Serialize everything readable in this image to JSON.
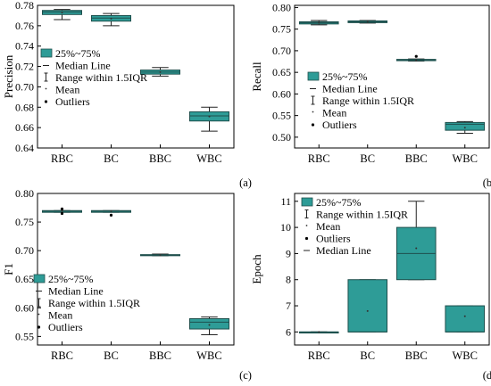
{
  "colors": {
    "box_fill": "#2e9c97",
    "box_stroke": "#1e4f4c",
    "axis": "#000000",
    "median": "#1e4f4c"
  },
  "chart_data": [
    {
      "panel_label": "(a)",
      "type": "box",
      "ylabel": "Precision",
      "ylim": [
        0.64,
        0.78
      ],
      "yticks": [
        "0.64",
        "0.66",
        "0.68",
        "0.70",
        "0.72",
        "0.74",
        "0.76",
        "0.78"
      ],
      "categories": [
        "RBC",
        "BC",
        "BBC",
        "WBC"
      ],
      "legend_position": "left-center",
      "legend": [
        "25%~75%",
        "Median Line",
        "Range within 1.5IQR",
        "Mean",
        "Outliers"
      ],
      "boxes": [
        {
          "category": "RBC",
          "q1": 0.771,
          "median": 0.7735,
          "q3": 0.775,
          "whisker_low": 0.766,
          "whisker_high": 0.776,
          "mean": 0.773,
          "outliers": []
        },
        {
          "category": "BC",
          "q1": 0.7645,
          "median": 0.7675,
          "q3": 0.77,
          "whisker_low": 0.76,
          "whisker_high": 0.772,
          "mean": 0.767,
          "outliers": []
        },
        {
          "category": "BBC",
          "q1": 0.7125,
          "median": 0.7145,
          "q3": 0.7165,
          "whisker_low": 0.7105,
          "whisker_high": 0.719,
          "mean": 0.7145,
          "outliers": []
        },
        {
          "category": "WBC",
          "q1": 0.6665,
          "median": 0.6715,
          "q3": 0.6755,
          "whisker_low": 0.6565,
          "whisker_high": 0.68,
          "mean": 0.671,
          "outliers": []
        }
      ]
    },
    {
      "panel_label": "(b)",
      "type": "box",
      "ylabel": "Recall",
      "ylim": [
        0.475,
        0.805
      ],
      "yticks": [
        "0.50",
        "0.55",
        "0.60",
        "0.65",
        "0.70",
        "0.75",
        "0.80"
      ],
      "categories": [
        "RBC",
        "BC",
        "BBC",
        "WBC"
      ],
      "legend_position": "right-center",
      "legend": [
        "25%~75%",
        "Median Line",
        "Range within 1.5IQR",
        "Mean",
        "Outliers"
      ],
      "boxes": [
        {
          "category": "RBC",
          "q1": 0.762,
          "median": 0.765,
          "q3": 0.767,
          "whisker_low": 0.76,
          "whisker_high": 0.77,
          "mean": 0.765,
          "outliers": []
        },
        {
          "category": "BC",
          "q1": 0.765,
          "median": 0.767,
          "q3": 0.769,
          "whisker_low": 0.764,
          "whisker_high": 0.77,
          "mean": 0.767,
          "outliers": []
        },
        {
          "category": "BBC",
          "q1": 0.677,
          "median": 0.678,
          "q3": 0.68,
          "whisker_low": 0.676,
          "whisker_high": 0.681,
          "mean": 0.678,
          "outliers": [
            0.687
          ]
        },
        {
          "category": "WBC",
          "q1": 0.516,
          "median": 0.53,
          "q3": 0.534,
          "whisker_low": 0.509,
          "whisker_high": 0.536,
          "mean": 0.522,
          "outliers": []
        }
      ]
    },
    {
      "panel_label": "(c)",
      "type": "box",
      "ylabel": "F1",
      "ylim": [
        0.535,
        0.8
      ],
      "yticks": [
        "0.55",
        "0.60",
        "0.65",
        "0.70",
        "0.75",
        "0.80"
      ],
      "categories": [
        "RBC",
        "BC",
        "BBC",
        "WBC"
      ],
      "legend_position": "left-lower",
      "legend": [
        "25%~75%",
        "Median Line",
        "Range within 1.5IQR",
        "Mean",
        "Outliers"
      ],
      "boxes": [
        {
          "category": "RBC",
          "q1": 0.767,
          "median": 0.769,
          "q3": 0.77,
          "whisker_low": 0.767,
          "whisker_high": 0.77,
          "mean": 0.769,
          "outliers": [
            0.773,
            0.765
          ]
        },
        {
          "category": "BC",
          "q1": 0.767,
          "median": 0.769,
          "q3": 0.77,
          "whisker_low": 0.767,
          "whisker_high": 0.77,
          "mean": 0.769,
          "outliers": [
            0.762
          ]
        },
        {
          "category": "BBC",
          "q1": 0.6915,
          "median": 0.692,
          "q3": 0.693,
          "whisker_low": 0.691,
          "whisker_high": 0.694,
          "mean": 0.692,
          "outliers": []
        },
        {
          "category": "WBC",
          "q1": 0.563,
          "median": 0.575,
          "q3": 0.581,
          "whisker_low": 0.553,
          "whisker_high": 0.584,
          "mean": 0.57,
          "outliers": []
        }
      ]
    },
    {
      "panel_label": "(d)",
      "type": "box",
      "ylabel": "Epoch",
      "ylim": [
        5.5,
        11.3
      ],
      "yticks": [
        "6",
        "7",
        "8",
        "9",
        "10",
        "11"
      ],
      "categories": [
        "RBC",
        "BC",
        "BBC",
        "WBC"
      ],
      "legend_position": "top-left",
      "legend": [
        "25%~75%",
        "Range within 1.5IQR",
        "Mean",
        "Outliers",
        "Median Line"
      ],
      "boxes": [
        {
          "category": "RBC",
          "q1": 6,
          "median": 6,
          "q3": 6,
          "whisker_low": 6,
          "whisker_high": 6,
          "mean": 6,
          "outliers": []
        },
        {
          "category": "BC",
          "q1": 6,
          "median": 6,
          "q3": 8,
          "whisker_low": 6,
          "whisker_high": 8,
          "mean": 6.8,
          "outliers": []
        },
        {
          "category": "BBC",
          "q1": 8,
          "median": 9,
          "q3": 10,
          "whisker_low": 8,
          "whisker_high": 11,
          "mean": 9.2,
          "outliers": []
        },
        {
          "category": "WBC",
          "q1": 6,
          "median": 6,
          "q3": 7,
          "whisker_low": 6,
          "whisker_high": 7,
          "mean": 6.6,
          "outliers": []
        }
      ]
    }
  ]
}
